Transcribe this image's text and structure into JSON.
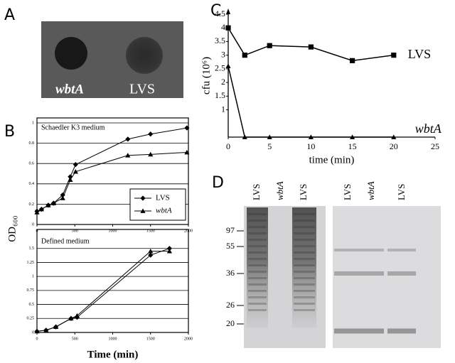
{
  "figure": {
    "panel_labels": [
      "A",
      "B",
      "C",
      "D"
    ],
    "panel_a": {
      "labels": [
        "wbtA",
        "LVS"
      ]
    },
    "panel_d": {
      "lanes": [
        [
          "LVS",
          "wbtA",
          "LVS"
        ],
        [
          "LVS",
          "wbtA",
          "LVS"
        ]
      ],
      "markers": [
        97,
        55,
        36,
        26,
        20
      ]
    }
  },
  "chart_data": [
    {
      "type": "line",
      "title": "Schaedler K3 medium",
      "ylabel": "OD₆₀₀",
      "x": [
        0,
        60,
        150,
        220,
        340,
        440,
        510,
        1200,
        1500,
        1980
      ],
      "series": [
        {
          "name": "LVS",
          "color": "#000000",
          "marker": "diamond",
          "values": [
            0.13,
            0.15,
            0.19,
            0.21,
            0.29,
            0.47,
            0.59,
            0.84,
            0.89,
            0.95
          ]
        },
        {
          "name": "wbtA",
          "color": "#000000",
          "marker": "triangle",
          "values": [
            0.12,
            0.15,
            0.19,
            0.21,
            0.26,
            0.44,
            0.52,
            0.68,
            0.69,
            0.71
          ]
        }
      ],
      "xlim": [
        0,
        2000
      ],
      "xticks": [
        0,
        500,
        1000,
        1500,
        2000
      ],
      "ylim": [
        0,
        1
      ],
      "yticks": [
        0,
        0.2,
        0.4,
        0.6,
        0.8,
        1
      ],
      "grid": true,
      "legend": "lower right"
    },
    {
      "type": "line",
      "title": "Defined medium",
      "xlabel": "Time (min)",
      "x": [
        0,
        120,
        250,
        450,
        530,
        1500,
        1750
      ],
      "series": [
        {
          "color": "#000000",
          "marker": "diamond",
          "values": [
            0.02,
            0.04,
            0.1,
            0.25,
            0.27,
            1.38,
            1.5
          ]
        },
        {
          "color": "#000000",
          "marker": "triangle",
          "values": [
            0.02,
            0.04,
            0.1,
            0.25,
            0.3,
            1.45,
            1.45
          ]
        }
      ],
      "xlim": [
        0,
        2000
      ],
      "xticks": [
        0,
        500,
        1000,
        1500,
        2000
      ],
      "ylim": [
        0,
        1.75
      ],
      "yticks": [
        0,
        0.25,
        0.5,
        0.75,
        1,
        1.25,
        1.5
      ],
      "grid": true
    },
    {
      "type": "line",
      "xlabel": "time (min)",
      "ylabel": "cfu (10⁶)",
      "x": [
        0,
        2,
        5,
        10,
        15,
        20
      ],
      "series": [
        {
          "name": "LVS",
          "color": "#000000",
          "marker": "square",
          "values": [
            4,
            3,
            3.35,
            3.3,
            2.8,
            3
          ]
        },
        {
          "name": "wbtA",
          "color": "#000000",
          "marker": "triangle",
          "values": [
            2.6,
            0,
            0,
            0,
            0,
            0
          ]
        }
      ],
      "xlim": [
        0,
        25
      ],
      "xticks": [
        0,
        5,
        10,
        15,
        20,
        25
      ],
      "ylim": [
        0,
        4.5
      ],
      "yticks": [
        1,
        1.5,
        2,
        2.5,
        3,
        3.5,
        4,
        4.5
      ],
      "grid": false,
      "legend": "line end"
    }
  ]
}
